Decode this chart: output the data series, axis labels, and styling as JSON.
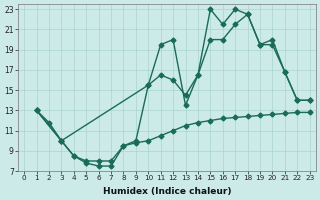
{
  "xlabel": "Humidex (Indice chaleur)",
  "bg_color": "#cceae7",
  "grid_color": "#aad4d0",
  "line_color": "#1a6b5a",
  "xlim": [
    -0.5,
    23.5
  ],
  "ylim": [
    7,
    23.5
  ],
  "xticks": [
    0,
    1,
    2,
    3,
    4,
    5,
    6,
    7,
    8,
    9,
    10,
    11,
    12,
    13,
    14,
    15,
    16,
    17,
    18,
    19,
    20,
    21,
    22,
    23
  ],
  "yticks": [
    7,
    9,
    11,
    13,
    15,
    17,
    19,
    21,
    23
  ],
  "line1_x": [
    1,
    2,
    3,
    4,
    5,
    6,
    7,
    8,
    9,
    10,
    11,
    12,
    13,
    14,
    15,
    16,
    17,
    18,
    19,
    20,
    21,
    22,
    23
  ],
  "line1_y": [
    13.0,
    11.8,
    10.0,
    8.5,
    7.8,
    7.5,
    7.5,
    9.5,
    10.0,
    15.5,
    19.5,
    20.0,
    13.5,
    16.5,
    23.0,
    21.5,
    23.0,
    22.5,
    19.5,
    19.5,
    16.8,
    14.0,
    14.0
  ],
  "line2_x": [
    1,
    3,
    10,
    11,
    12,
    13,
    14,
    15,
    16,
    17,
    18,
    19,
    20,
    21,
    22,
    23
  ],
  "line2_y": [
    13.0,
    10.0,
    15.5,
    16.5,
    16.0,
    14.5,
    16.5,
    20.0,
    20.0,
    21.5,
    22.5,
    19.5,
    20.0,
    16.8,
    14.0,
    14.0
  ],
  "line3_x": [
    1,
    3,
    4,
    5,
    6,
    7,
    8,
    9,
    10,
    11,
    12,
    13,
    14,
    15,
    16,
    17,
    18,
    19,
    20,
    21,
    22,
    23
  ],
  "line3_y": [
    13.0,
    10.0,
    8.5,
    8.0,
    8.0,
    8.0,
    9.5,
    9.8,
    10.0,
    10.5,
    11.0,
    11.5,
    11.8,
    12.0,
    12.2,
    12.3,
    12.4,
    12.5,
    12.6,
    12.7,
    12.8,
    12.8
  ],
  "marker": "D",
  "markersize": 2.5,
  "linewidth": 1.0
}
